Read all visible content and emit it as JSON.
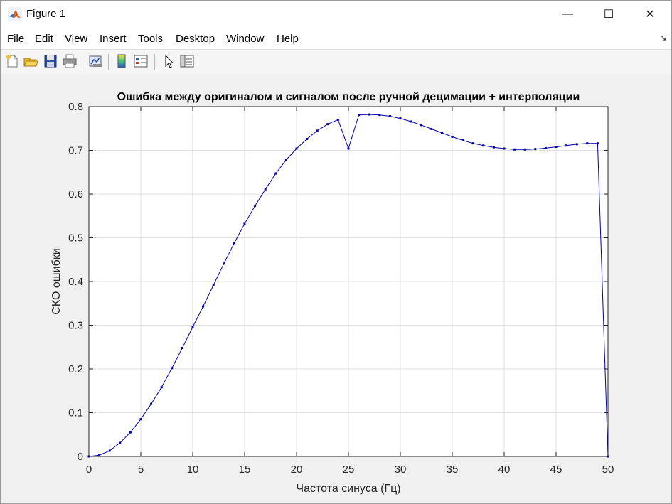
{
  "window": {
    "title": "Figure 1",
    "controls": {
      "minimize": "—",
      "maximize": "☐",
      "close": "✕"
    }
  },
  "menu": [
    {
      "label": "File",
      "mnemonic": "F"
    },
    {
      "label": "Edit",
      "mnemonic": "E"
    },
    {
      "label": "View",
      "mnemonic": "V"
    },
    {
      "label": "Insert",
      "mnemonic": "I"
    },
    {
      "label": "Tools",
      "mnemonic": "T"
    },
    {
      "label": "Desktop",
      "mnemonic": "D"
    },
    {
      "label": "Window",
      "mnemonic": "W"
    },
    {
      "label": "Help",
      "mnemonic": "H"
    }
  ],
  "menu_dock_arrow": "↘",
  "toolbar": [
    {
      "icon": "new-figure-icon"
    },
    {
      "icon": "open-file-icon"
    },
    {
      "icon": "save-icon"
    },
    {
      "icon": "print-icon"
    },
    {
      "icon": "link-plot-icon"
    },
    {
      "icon": "insert-colorbar-icon"
    },
    {
      "icon": "insert-legend-icon"
    },
    {
      "icon": "edit-plot-arrow-icon"
    },
    {
      "icon": "property-inspector-icon"
    }
  ],
  "colors": {
    "line": "#0000aa",
    "grid": "#e0e0e0",
    "axes": "#262626"
  },
  "chart_data": {
    "type": "line",
    "title": "Ошибка между оригиналом и сигналом после ручной децимации + интерполяции",
    "xlabel": "Частота синуса (Гц)",
    "ylabel": "СКО ошибки",
    "xlim": [
      0,
      50
    ],
    "ylim": [
      0,
      0.8
    ],
    "xticks": [
      0,
      5,
      10,
      15,
      20,
      25,
      30,
      35,
      40,
      45,
      50
    ],
    "yticks": [
      0,
      0.1,
      0.2,
      0.3,
      0.4,
      0.5,
      0.6,
      0.7,
      0.8
    ],
    "grid": true,
    "marker": "dot",
    "series": [
      {
        "x": [
          0,
          1,
          2,
          3,
          4,
          5,
          6,
          7,
          8,
          9,
          10,
          11,
          12,
          13,
          14,
          15,
          16,
          17,
          18,
          19,
          20,
          21,
          22,
          23,
          24,
          25,
          26,
          27,
          28,
          29,
          30,
          31,
          32,
          33,
          34,
          35,
          36,
          37,
          38,
          39,
          40,
          41,
          42,
          43,
          44,
          45,
          46,
          47,
          48,
          49,
          50
        ],
        "y": [
          0,
          0.003,
          0.013,
          0.031,
          0.055,
          0.085,
          0.12,
          0.158,
          0.202,
          0.248,
          0.296,
          0.343,
          0.392,
          0.441,
          0.488,
          0.532,
          0.573,
          0.611,
          0.647,
          0.678,
          0.704,
          0.726,
          0.745,
          0.76,
          0.77,
          0.704,
          0.781,
          0.782,
          0.781,
          0.778,
          0.773,
          0.766,
          0.758,
          0.749,
          0.74,
          0.731,
          0.723,
          0.716,
          0.711,
          0.707,
          0.704,
          0.702,
          0.702,
          0.703,
          0.705,
          0.708,
          0.711,
          0.714,
          0.716,
          0.716,
          0
        ]
      }
    ]
  }
}
